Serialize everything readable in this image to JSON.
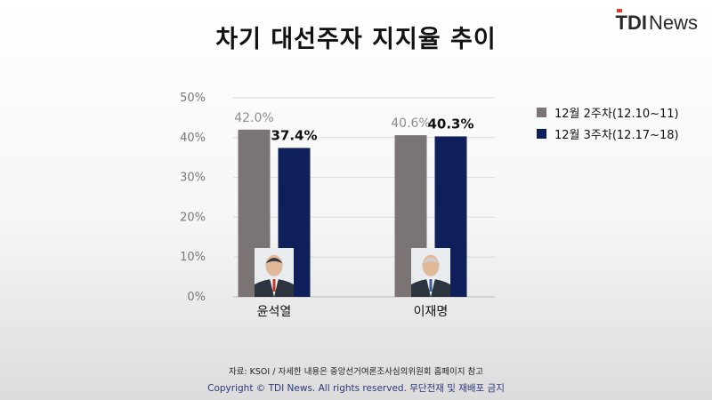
{
  "header": {
    "title": "차기 대선주자 지지율 추이",
    "logo_tdi": "TDI",
    "logo_news": "News"
  },
  "chart_data": {
    "type": "bar",
    "title": "차기 대선주자 지지율 추이",
    "categories": [
      "윤석열",
      "이재명"
    ],
    "series": [
      {
        "name": "12월 2주차(12.10~11)",
        "values": [
          42.0,
          40.6
        ],
        "labels": [
          "42.0%",
          "40.6%"
        ],
        "color": "#7a7574"
      },
      {
        "name": "12월 3주차(12.17~18)",
        "values": [
          37.4,
          40.3
        ],
        "labels": [
          "37.4%",
          "40.3%"
        ],
        "color": "#0f1f5c"
      }
    ],
    "yticks": [
      "0%",
      "10%",
      "20%",
      "30%",
      "40%",
      "50%"
    ],
    "ylim": [
      0,
      50
    ],
    "grid": true,
    "legend": "right"
  },
  "footer": {
    "source": "자료: KSOI / 자세한 내용은 중앙선거여론조사심의위원회 홈페이지 참고",
    "copyright": "Copyright © TDI News. All rights reserved. 무단전재 및 재배포 금지"
  }
}
